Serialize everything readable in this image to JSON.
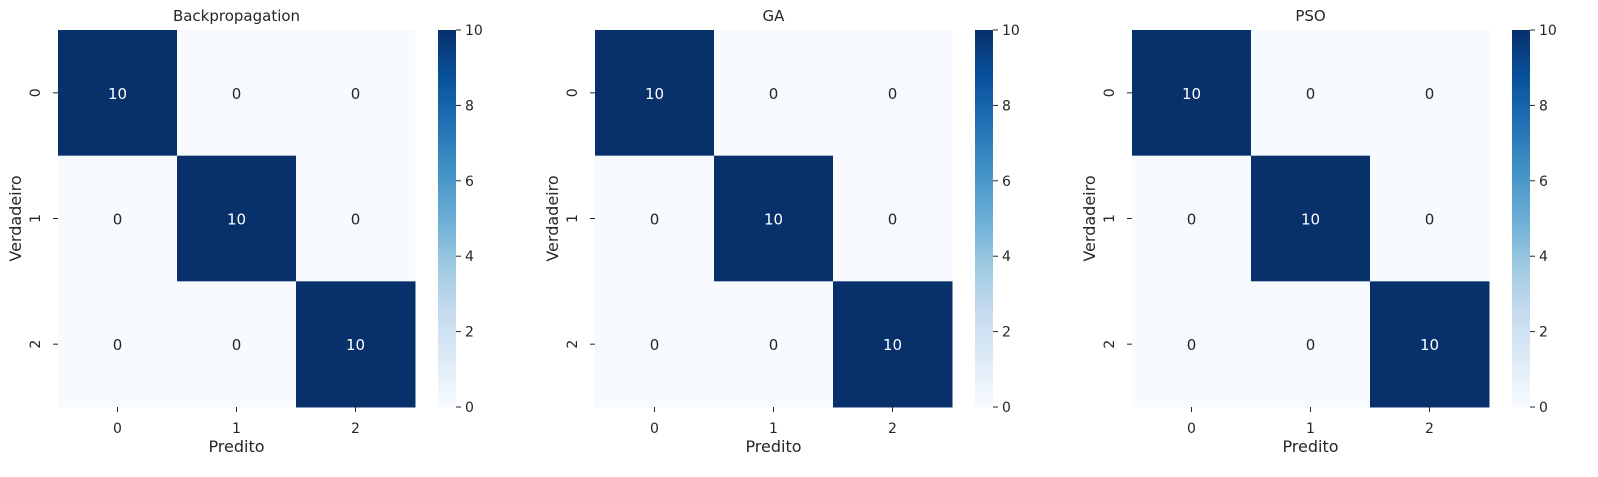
{
  "chart_data": [
    {
      "type": "heatmap",
      "title": "Backpropagation",
      "xlabel": "Predito",
      "ylabel": "Verdadeiro",
      "x_categories": [
        "0",
        "1",
        "2"
      ],
      "y_categories": [
        "0",
        "1",
        "2"
      ],
      "matrix": [
        [
          10,
          0,
          0
        ],
        [
          0,
          10,
          0
        ],
        [
          0,
          0,
          10
        ]
      ],
      "colorbar": {
        "range": [
          0,
          10
        ],
        "ticks": [
          "0",
          "2",
          "4",
          "6",
          "8",
          "10"
        ],
        "colormap": "Blues"
      },
      "grid": false
    },
    {
      "type": "heatmap",
      "title": "GA",
      "xlabel": "Predito",
      "ylabel": "Verdadeiro",
      "x_categories": [
        "0",
        "1",
        "2"
      ],
      "y_categories": [
        "0",
        "1",
        "2"
      ],
      "matrix": [
        [
          10,
          0,
          0
        ],
        [
          0,
          10,
          0
        ],
        [
          0,
          0,
          10
        ]
      ],
      "colorbar": {
        "range": [
          0,
          10
        ],
        "ticks": [
          "0",
          "2",
          "4",
          "6",
          "8",
          "10"
        ],
        "colormap": "Blues"
      },
      "grid": false
    },
    {
      "type": "heatmap",
      "title": "PSO",
      "xlabel": "Predito",
      "ylabel": "Verdadeiro",
      "x_categories": [
        "0",
        "1",
        "2"
      ],
      "y_categories": [
        "0",
        "1",
        "2"
      ],
      "matrix": [
        [
          10,
          0,
          0
        ],
        [
          0,
          10,
          0
        ],
        [
          0,
          0,
          10
        ]
      ],
      "colorbar": {
        "range": [
          0,
          10
        ],
        "ticks": [
          "0",
          "2",
          "4",
          "6",
          "8",
          "10"
        ],
        "colormap": "Blues"
      },
      "grid": false
    }
  ],
  "colors": {
    "low": "#f7fbff",
    "high": "#08306b",
    "text_dark": "#262626",
    "text_light": "#ffffff"
  }
}
